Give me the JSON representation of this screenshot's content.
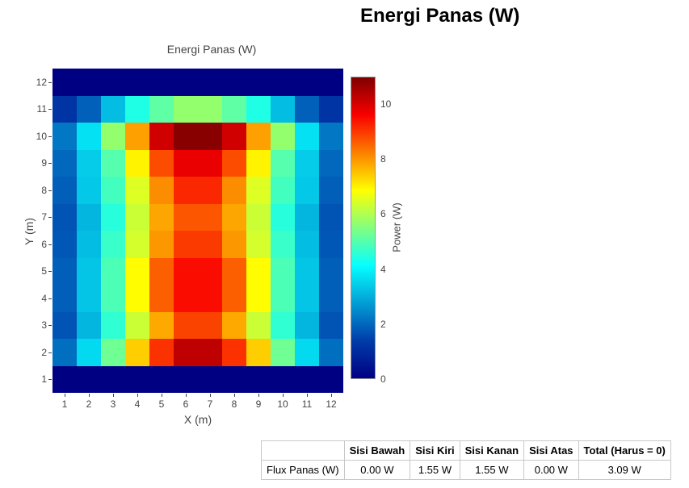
{
  "page": {
    "heading": "Energi Panas (W)"
  },
  "chart_data": [
    {
      "type": "heatmap",
      "title": "Energi Panas (W)",
      "xlabel": "X (m)",
      "ylabel": "Y (m)",
      "x": [
        1,
        2,
        3,
        4,
        5,
        6,
        7,
        8,
        9,
        10,
        11,
        12
      ],
      "y": [
        1,
        2,
        3,
        4,
        5,
        6,
        7,
        8,
        9,
        10,
        11,
        12
      ],
      "z": [
        [
          0,
          0,
          0,
          0,
          0,
          0,
          0,
          0,
          0,
          0,
          0,
          0
        ],
        [
          2.1,
          3.6,
          5.3,
          7.4,
          9.1,
          10.3,
          10.3,
          9.1,
          7.4,
          5.3,
          3.6,
          2.1
        ],
        [
          1.7,
          3.1,
          4.6,
          6.3,
          7.8,
          8.9,
          8.9,
          7.8,
          6.3,
          4.6,
          3.1,
          1.7
        ],
        [
          1.85,
          3.3,
          4.9,
          6.9,
          8.6,
          9.5,
          9.5,
          8.6,
          6.9,
          4.9,
          3.3,
          1.85
        ],
        [
          1.85,
          3.3,
          4.9,
          6.9,
          8.6,
          9.5,
          9.5,
          8.6,
          6.9,
          4.9,
          3.3,
          1.85
        ],
        [
          1.75,
          3.2,
          4.7,
          6.4,
          8.0,
          9.0,
          9.0,
          8.0,
          6.4,
          4.7,
          3.2,
          1.75
        ],
        [
          1.7,
          3.1,
          4.5,
          6.3,
          7.85,
          8.7,
          8.7,
          7.85,
          6.3,
          4.5,
          3.1,
          1.7
        ],
        [
          1.85,
          3.35,
          4.8,
          6.5,
          8.1,
          9.2,
          9.2,
          8.1,
          6.5,
          4.8,
          3.35,
          1.85
        ],
        [
          2.0,
          3.4,
          5.0,
          7.0,
          8.8,
          9.8,
          9.8,
          8.8,
          7.0,
          5.0,
          3.4,
          2.0
        ],
        [
          2.2,
          3.7,
          5.7,
          7.9,
          10.1,
          10.9,
          10.9,
          10.1,
          7.9,
          5.7,
          3.7,
          2.2
        ],
        [
          1.2,
          1.9,
          3.2,
          4.4,
          5.1,
          5.7,
          5.7,
          5.1,
          4.4,
          3.2,
          1.9,
          1.2
        ],
        [
          0,
          0,
          0,
          0,
          0,
          0,
          0,
          0,
          0,
          0,
          0,
          0
        ]
      ],
      "zmin": 0,
      "zmax": 11,
      "colorscale": "jet",
      "grid": false,
      "colorbar": {
        "label": "Power (W)",
        "ticks": [
          0,
          2,
          4,
          6,
          8,
          10
        ],
        "position": "right"
      }
    },
    {
      "type": "table",
      "columns": [
        "",
        "Sisi Bawah",
        "Sisi Kiri",
        "Sisi Kanan",
        "Sisi Atas",
        "Total (Harus = 0)"
      ],
      "rows": [
        [
          "Flux Panas (W)",
          "0.00 W",
          "1.55 W",
          "1.55 W",
          "0.00 W",
          "3.09 W"
        ]
      ]
    }
  ],
  "colors": {
    "jet_anchors": [
      [
        0,
        "#000083"
      ],
      [
        0.125,
        "#003caa"
      ],
      [
        0.375,
        "#05ffff"
      ],
      [
        0.625,
        "#ffff00"
      ],
      [
        0.875,
        "#fa0000"
      ],
      [
        1,
        "#800000"
      ]
    ],
    "axis_text": "#444444",
    "table_border": "#c8c8c8"
  }
}
